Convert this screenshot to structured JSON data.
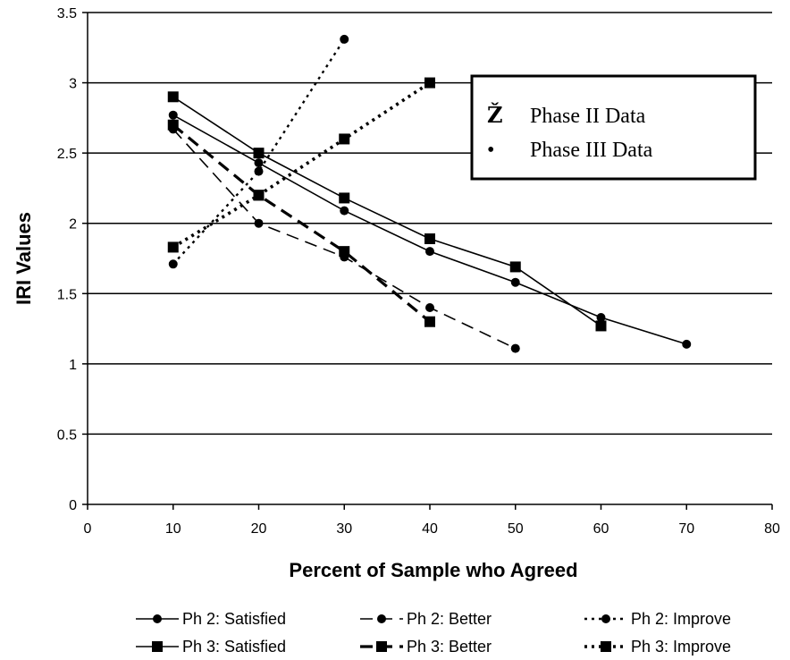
{
  "chart_data": {
    "type": "line",
    "xlabel": "Percent of Sample who Agreed",
    "ylabel": "IRI Values",
    "xlim": [
      0,
      80
    ],
    "ylim": [
      0,
      3.5
    ],
    "x_ticks": [
      "0",
      "10",
      "20",
      "30",
      "40",
      "50",
      "60",
      "70",
      "80"
    ],
    "y_ticks": [
      "0",
      "0.5",
      "1",
      "1.5",
      "2",
      "2.5",
      "3",
      "3.5"
    ],
    "grid": "horizontal",
    "legend_placement": "bottom",
    "series": [
      {
        "name": "Ph 2: Satisfied",
        "marker": "circle",
        "line": "solid",
        "x": [
          10,
          20,
          30,
          40,
          50,
          60,
          70
        ],
        "y": [
          2.77,
          2.43,
          2.09,
          1.8,
          1.58,
          1.33,
          1.14
        ]
      },
      {
        "name": "Ph 2: Better",
        "marker": "circle",
        "line": "dash",
        "x": [
          10,
          20,
          30,
          40,
          50
        ],
        "y": [
          2.67,
          2.0,
          1.76,
          1.4,
          1.11
        ]
      },
      {
        "name": "Ph 2: Improve",
        "marker": "circle",
        "line": "dot",
        "x": [
          10,
          20,
          30
        ],
        "y": [
          1.71,
          2.37,
          3.31
        ]
      },
      {
        "name": "Ph 3: Satisfied",
        "marker": "square",
        "line": "solid",
        "x": [
          10,
          20,
          30,
          40,
          50,
          60
        ],
        "y": [
          2.9,
          2.5,
          2.18,
          1.89,
          1.69,
          1.27
        ]
      },
      {
        "name": "Ph 3: Better",
        "marker": "square",
        "line": "heavy-dash",
        "x": [
          10,
          20,
          30,
          40
        ],
        "y": [
          2.7,
          2.2,
          1.8,
          1.3
        ]
      },
      {
        "name": "Ph 3: Improve",
        "marker": "square",
        "line": "heavy-dot",
        "x": [
          10,
          20,
          30,
          40
        ],
        "y": [
          1.83,
          2.2,
          2.6,
          3.0
        ]
      }
    ],
    "annotation_box": {
      "rows": [
        {
          "symbol": "Ž",
          "label": "Phase II Data"
        },
        {
          "symbol": "•",
          "label": "Phase III Data"
        }
      ]
    }
  }
}
